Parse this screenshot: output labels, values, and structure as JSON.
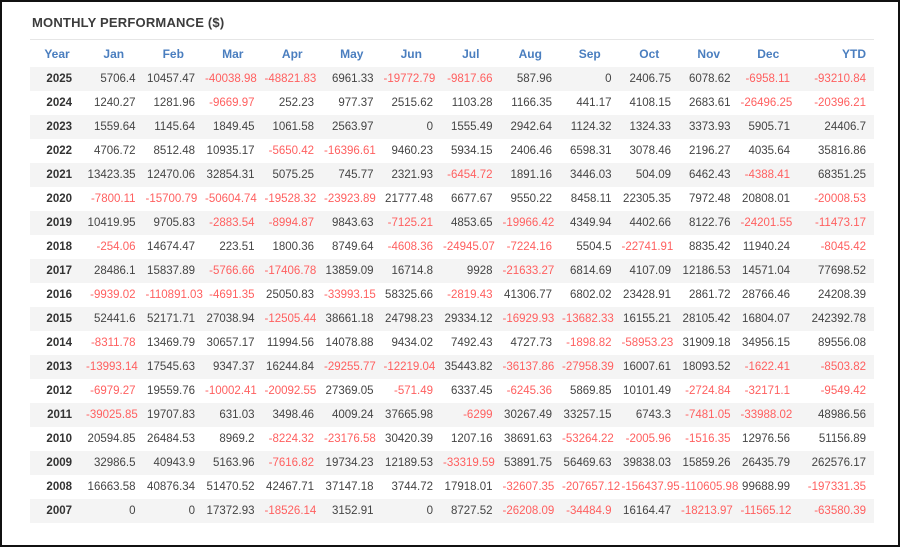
{
  "header": {
    "title": "MONTHLY PERFORMANCE ($)"
  },
  "colors": {
    "header_text": "#4a7ebf",
    "positive_value": "#444444",
    "negative_value": "#ff5f5f",
    "alt_row_bg": "#f4f4f4",
    "border": "#111111"
  },
  "table": {
    "columns": [
      "Year",
      "Jan",
      "Feb",
      "Mar",
      "Apr",
      "May",
      "Jun",
      "Jul",
      "Aug",
      "Sep",
      "Oct",
      "Nov",
      "Dec",
      "YTD"
    ],
    "rows": [
      {
        "year": "2025",
        "values": [
          "5706.4",
          "10457.47",
          "-40038.98",
          "-48821.83",
          "6961.33",
          "-19772.79",
          "-9817.66",
          "587.96",
          "0",
          "2406.75",
          "6078.62",
          "-6958.11",
          "-93210.84"
        ]
      },
      {
        "year": "2024",
        "values": [
          "1240.27",
          "1281.96",
          "-9669.97",
          "252.23",
          "977.37",
          "2515.62",
          "1103.28",
          "1166.35",
          "441.17",
          "4108.15",
          "2683.61",
          "-26496.25",
          "-20396.21"
        ]
      },
      {
        "year": "2023",
        "values": [
          "1559.64",
          "1145.64",
          "1849.45",
          "1061.58",
          "2563.97",
          "0",
          "1555.49",
          "2942.64",
          "1124.32",
          "1324.33",
          "3373.93",
          "5905.71",
          "24406.7"
        ]
      },
      {
        "year": "2022",
        "values": [
          "4706.72",
          "8512.48",
          "10935.17",
          "-5650.42",
          "-16396.61",
          "9460.23",
          "5934.15",
          "2406.46",
          "6598.31",
          "3078.46",
          "2196.27",
          "4035.64",
          "35816.86"
        ]
      },
      {
        "year": "2021",
        "values": [
          "13423.35",
          "12470.06",
          "32854.31",
          "5075.25",
          "745.77",
          "2321.93",
          "-6454.72",
          "1891.16",
          "3446.03",
          "504.09",
          "6462.43",
          "-4388.41",
          "68351.25"
        ]
      },
      {
        "year": "2020",
        "values": [
          "-7800.11",
          "-15700.79",
          "-50604.74",
          "-19528.32",
          "-23923.89",
          "21777.48",
          "6677.67",
          "9550.22",
          "8458.11",
          "22305.35",
          "7972.48",
          "20808.01",
          "-20008.53"
        ]
      },
      {
        "year": "2019",
        "values": [
          "10419.95",
          "9705.83",
          "-2883.54",
          "-8994.87",
          "9843.63",
          "-7125.21",
          "4853.65",
          "-19966.42",
          "4349.94",
          "4402.66",
          "8122.76",
          "-24201.55",
          "-11473.17"
        ]
      },
      {
        "year": "2018",
        "values": [
          "-254.06",
          "14674.47",
          "223.51",
          "1800.36",
          "8749.64",
          "-4608.36",
          "-24945.07",
          "-7224.16",
          "5504.5",
          "-22741.91",
          "8835.42",
          "11940.24",
          "-8045.42"
        ]
      },
      {
        "year": "2017",
        "values": [
          "28486.1",
          "15837.89",
          "-5766.66",
          "-17406.78",
          "13859.09",
          "16714.8",
          "9928",
          "-21633.27",
          "6814.69",
          "4107.09",
          "12186.53",
          "14571.04",
          "77698.52"
        ]
      },
      {
        "year": "2016",
        "values": [
          "-9939.02",
          "-110891.03",
          "-4691.35",
          "25050.83",
          "-33993.15",
          "58325.66",
          "-2819.43",
          "41306.77",
          "6802.02",
          "23428.91",
          "2861.72",
          "28766.46",
          "24208.39"
        ]
      },
      {
        "year": "2015",
        "values": [
          "52441.6",
          "52171.71",
          "27038.94",
          "-12505.44",
          "38661.18",
          "24798.23",
          "29334.12",
          "-16929.93",
          "-13682.33",
          "16155.21",
          "28105.42",
          "16804.07",
          "242392.78"
        ]
      },
      {
        "year": "2014",
        "values": [
          "-8311.78",
          "13469.79",
          "30657.17",
          "11994.56",
          "14078.88",
          "9434.02",
          "7492.43",
          "4727.73",
          "-1898.82",
          "-58953.23",
          "31909.18",
          "34956.15",
          "89556.08"
        ]
      },
      {
        "year": "2013",
        "values": [
          "-13993.14",
          "17545.63",
          "9347.37",
          "16244.84",
          "-29255.77",
          "-12219.04",
          "35443.82",
          "-36137.86",
          "-27958.39",
          "16007.61",
          "18093.52",
          "-1622.41",
          "-8503.82"
        ]
      },
      {
        "year": "2012",
        "values": [
          "-6979.27",
          "19559.76",
          "-10002.41",
          "-20092.55",
          "27369.05",
          "-571.49",
          "6337.45",
          "-6245.36",
          "5869.85",
          "10101.49",
          "-2724.84",
          "-32171.1",
          "-9549.42"
        ]
      },
      {
        "year": "2011",
        "values": [
          "-39025.85",
          "19707.83",
          "631.03",
          "3498.46",
          "4009.24",
          "37665.98",
          "-6299",
          "30267.49",
          "33257.15",
          "6743.3",
          "-7481.05",
          "-33988.02",
          "48986.56"
        ]
      },
      {
        "year": "2010",
        "values": [
          "20594.85",
          "26484.53",
          "8969.2",
          "-8224.32",
          "-23176.58",
          "30420.39",
          "1207.16",
          "38691.63",
          "-53264.22",
          "-2005.96",
          "-1516.35",
          "12976.56",
          "51156.89"
        ]
      },
      {
        "year": "2009",
        "values": [
          "32986.5",
          "40943.9",
          "5163.96",
          "-7616.82",
          "19734.23",
          "12189.53",
          "-33319.59",
          "53891.75",
          "56469.63",
          "39838.03",
          "15859.26",
          "26435.79",
          "262576.17"
        ]
      },
      {
        "year": "2008",
        "values": [
          "16663.58",
          "40876.34",
          "51470.52",
          "42467.71",
          "37147.18",
          "3744.72",
          "17918.01",
          "-32607.35",
          "-207657.12",
          "-156437.95",
          "-110605.98",
          "99688.99",
          "-197331.35"
        ]
      },
      {
        "year": "2007",
        "values": [
          "0",
          "0",
          "17372.93",
          "-18526.14",
          "3152.91",
          "0",
          "8727.52",
          "-26208.09",
          "-34484.9",
          "16164.47",
          "-18213.97",
          "-11565.12",
          "-63580.39"
        ]
      }
    ]
  }
}
